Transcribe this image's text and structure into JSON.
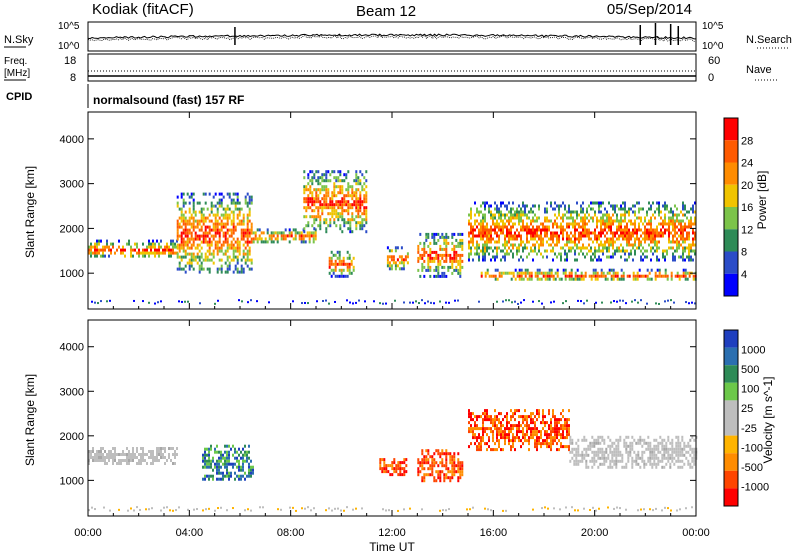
{
  "header": {
    "title": "Kodiak (fitACF)",
    "beam": "Beam 12",
    "date": "05/Sep/2014"
  },
  "noise_panel": {
    "left_label": "N.Sky",
    "right_label": "N.Search",
    "left_ticks": [
      "10^5",
      "10^0"
    ],
    "right_ticks": [
      "10^5",
      "10^0"
    ]
  },
  "freq_panel": {
    "left_label_1": "Freq.",
    "left_label_2": "[MHz]",
    "right_label": "Nave",
    "left_ticks": [
      "18",
      "8"
    ],
    "right_ticks": [
      "60",
      "0"
    ]
  },
  "cpid": {
    "label": "CPID",
    "value": "normalsound (fast) 157 RF"
  },
  "colors": {
    "power_scale": [
      "#0000ff",
      "#2b4cc8",
      "#2e8b57",
      "#7cc44a",
      "#f0c400",
      "#ff8c00",
      "#ff5a00",
      "#ff0000"
    ],
    "velocity_scale": [
      "#ff0000",
      "#ff4500",
      "#ff8c00",
      "#ffb400",
      "#bebebe",
      "#bebebe",
      "#6cc84a",
      "#2e8b57",
      "#2b6fb0",
      "#1f3fbf"
    ]
  },
  "chart_data": [
    {
      "type": "heatmap",
      "title": "Power",
      "ylabel": "Slant Range [km]",
      "xlabel": "",
      "ylim": [
        200,
        4600
      ],
      "yticks": [
        "1000",
        "2000",
        "3000",
        "4000"
      ],
      "xlim": [
        0,
        24
      ],
      "colorbar": {
        "label": "Power [dB]",
        "ticks": [
          "4",
          "8",
          "12",
          "16",
          "20",
          "24",
          "28"
        ]
      },
      "echo_regions": [
        {
          "t_start": 0.0,
          "t_end": 3.5,
          "range_km": [
            1350,
            1750
          ]
        },
        {
          "t_start": 3.5,
          "t_end": 6.5,
          "range_km": [
            1000,
            2800
          ]
        },
        {
          "t_start": 6.5,
          "t_end": 9.0,
          "range_km": [
            1700,
            2000
          ]
        },
        {
          "t_start": 8.5,
          "t_end": 11.0,
          "range_km": [
            1900,
            3300
          ]
        },
        {
          "t_start": 9.5,
          "t_end": 10.5,
          "range_km": [
            950,
            1500
          ]
        },
        {
          "t_start": 11.8,
          "t_end": 12.6,
          "range_km": [
            1100,
            1600
          ]
        },
        {
          "t_start": 13.0,
          "t_end": 14.8,
          "range_km": [
            950,
            1900
          ]
        },
        {
          "t_start": 15.0,
          "t_end": 24.0,
          "range_km": [
            1300,
            2600
          ]
        },
        {
          "t_start": 15.5,
          "t_end": 24.0,
          "range_km": [
            850,
            1100
          ]
        }
      ]
    },
    {
      "type": "heatmap",
      "title": "Velocity",
      "ylabel": "Slant Range [km]",
      "xlabel": "Time UT",
      "ylim": [
        200,
        4600
      ],
      "yticks": [
        "1000",
        "2000",
        "3000",
        "4000"
      ],
      "xlim": [
        0,
        24
      ],
      "xticks": [
        "00:00",
        "04:00",
        "08:00",
        "12:00",
        "16:00",
        "20:00",
        "00:00"
      ],
      "colorbar": {
        "label": "Velocity [m s^-1]",
        "ticks": [
          "1000",
          "500",
          "100",
          "25",
          "-25",
          "-100",
          "-500",
          "-1000"
        ]
      },
      "echo_regions": [
        {
          "t_start": 0.0,
          "t_end": 3.5,
          "range_km": [
            1350,
            1750
          ],
          "velocity": "ground scatter"
        },
        {
          "t_start": 4.5,
          "t_end": 6.5,
          "range_km": [
            1000,
            1800
          ],
          "velocity": "toward (positive)"
        },
        {
          "t_start": 11.5,
          "t_end": 12.6,
          "range_km": [
            1100,
            1500
          ],
          "velocity": "away (negative)"
        },
        {
          "t_start": 13.0,
          "t_end": 14.8,
          "range_km": [
            1000,
            1700
          ],
          "velocity": "away (negative)"
        },
        {
          "t_start": 15.0,
          "t_end": 19.0,
          "range_km": [
            1700,
            2600
          ],
          "velocity": "away (negative)"
        },
        {
          "t_start": 19.0,
          "t_end": 24.0,
          "range_km": [
            1300,
            2000
          ],
          "velocity": "ground scatter"
        }
      ]
    }
  ]
}
